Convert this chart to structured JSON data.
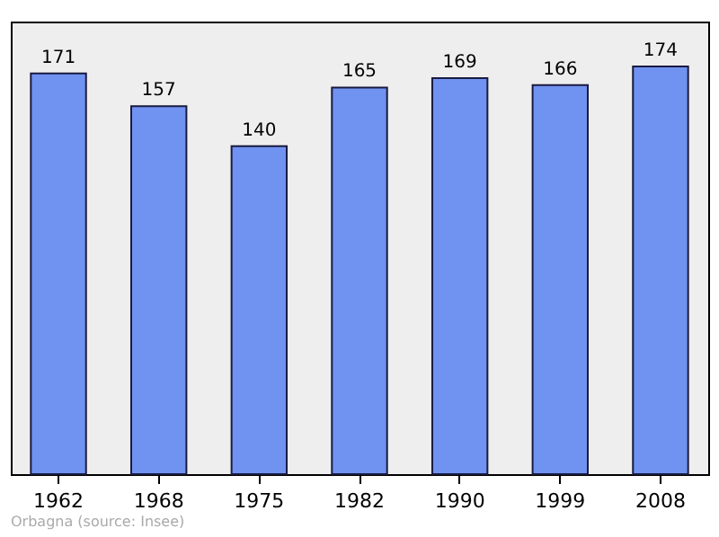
{
  "chart_data": {
    "type": "bar",
    "categories": [
      "1962",
      "1968",
      "1975",
      "1982",
      "1990",
      "1999",
      "2008"
    ],
    "values": [
      171,
      157,
      140,
      165,
      169,
      166,
      174
    ],
    "color": "#7092f0",
    "data_labels": true,
    "annotations": [
      "Orbagna    (source: Insee)"
    ]
  }
}
